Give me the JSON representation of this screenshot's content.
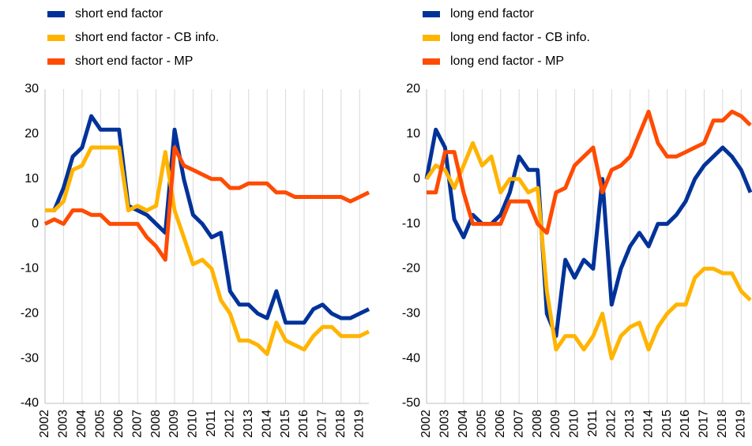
{
  "chart_data": [
    {
      "type": "line",
      "x": [
        2002,
        2002.5,
        2003,
        2003.5,
        2004,
        2004.5,
        2005,
        2005.5,
        2006,
        2006.5,
        2007,
        2007.5,
        2008,
        2008.5,
        2009,
        2009.5,
        2010,
        2010.5,
        2011,
        2011.5,
        2012,
        2012.5,
        2013,
        2013.5,
        2014,
        2014.5,
        2015,
        2015.5,
        2016,
        2016.5,
        2017,
        2017.5,
        2018,
        2018.5,
        2019,
        2019.5
      ],
      "series": [
        {
          "name": "short end factor",
          "color": "#003299",
          "values": [
            3,
            3,
            8,
            15,
            17,
            24,
            21,
            21,
            21,
            4,
            3,
            2,
            0,
            -2,
            21,
            10,
            2,
            0,
            -3,
            -2,
            -15,
            -18,
            -18,
            -20,
            -21,
            -15,
            -22,
            -22,
            -22,
            -19,
            -18,
            -20,
            -21,
            -21,
            -20,
            -19
          ]
        },
        {
          "name": "short end factor - CB info.",
          "color": "#ffb400",
          "values": [
            3,
            3,
            5,
            12,
            13,
            17,
            17,
            17,
            17,
            3,
            4,
            3,
            4,
            16,
            3,
            -3,
            -9,
            -8,
            -10,
            -17,
            -20,
            -26,
            -26,
            -27,
            -29,
            -22,
            -26,
            -27,
            -28,
            -25,
            -23,
            -23,
            -25,
            -25,
            -25,
            -24
          ]
        },
        {
          "name": "short end factor - MP",
          "color": "#ff4b00",
          "values": [
            0,
            1,
            0,
            3,
            3,
            2,
            2,
            0,
            0,
            0,
            0,
            -3,
            -5,
            -8,
            17,
            13,
            12,
            11,
            10,
            10,
            8,
            8,
            9,
            9,
            9,
            7,
            7,
            6,
            6,
            6,
            6,
            6,
            6,
            5,
            6,
            7
          ]
        }
      ],
      "xlim": [
        2002,
        2019.5
      ],
      "xticks": [
        2002,
        2003,
        2004,
        2005,
        2006,
        2007,
        2008,
        2009,
        2010,
        2011,
        2012,
        2013,
        2014,
        2015,
        2016,
        2017,
        2018,
        2019
      ],
      "ylim": [
        -40,
        30
      ],
      "yticks": [
        -40,
        -30,
        -20,
        -10,
        0,
        10,
        20,
        30
      ],
      "grid": "vertical"
    },
    {
      "type": "line",
      "x": [
        2002,
        2002.5,
        2003,
        2003.5,
        2004,
        2004.5,
        2005,
        2005.5,
        2006,
        2006.5,
        2007,
        2007.5,
        2008,
        2008.5,
        2009,
        2009.5,
        2010,
        2010.5,
        2011,
        2011.5,
        2012,
        2012.5,
        2013,
        2013.5,
        2014,
        2014.5,
        2015,
        2015.5,
        2016,
        2016.5,
        2017,
        2017.5,
        2018,
        2018.5,
        2019,
        2019.5
      ],
      "series": [
        {
          "name": "long end factor",
          "color": "#003299",
          "values": [
            0,
            11,
            7,
            -9,
            -13,
            -8,
            -10,
            -10,
            -8,
            -3,
            5,
            2,
            2,
            -30,
            -35,
            -18,
            -22,
            -18,
            -20,
            0,
            -28,
            -20,
            -15,
            -12,
            -15,
            -10,
            -10,
            -8,
            -5,
            0,
            3,
            5,
            7,
            5,
            2,
            -3
          ]
        },
        {
          "name": "long end factor - CB info.",
          "color": "#ffb400",
          "values": [
            0,
            3,
            2,
            -2,
            3,
            8,
            3,
            5,
            -3,
            0,
            0,
            -3,
            -2,
            -25,
            -38,
            -35,
            -35,
            -38,
            -35,
            -30,
            -40,
            -35,
            -33,
            -32,
            -38,
            -33,
            -30,
            -28,
            -28,
            -22,
            -20,
            -20,
            -21,
            -21,
            -25,
            -27
          ]
        },
        {
          "name": "long end factor - MP",
          "color": "#ff4b00",
          "values": [
            -3,
            -3,
            6,
            6,
            -3,
            -10,
            -10,
            -10,
            -10,
            -5,
            -5,
            -5,
            -10,
            -12,
            -3,
            -2,
            3,
            5,
            7,
            -3,
            2,
            3,
            5,
            10,
            15,
            8,
            5,
            5,
            6,
            7,
            8,
            13,
            13,
            15,
            14,
            12
          ]
        }
      ],
      "xlim": [
        2002,
        2019.5
      ],
      "xticks": [
        2002,
        2003,
        2004,
        2005,
        2006,
        2007,
        2008,
        2009,
        2010,
        2011,
        2012,
        2013,
        2014,
        2015,
        2016,
        2017,
        2018,
        2019
      ],
      "ylim": [
        -50,
        20
      ],
      "yticks": [
        -50,
        -40,
        -30,
        -20,
        -10,
        0,
        10,
        20
      ],
      "grid": "vertical"
    }
  ]
}
